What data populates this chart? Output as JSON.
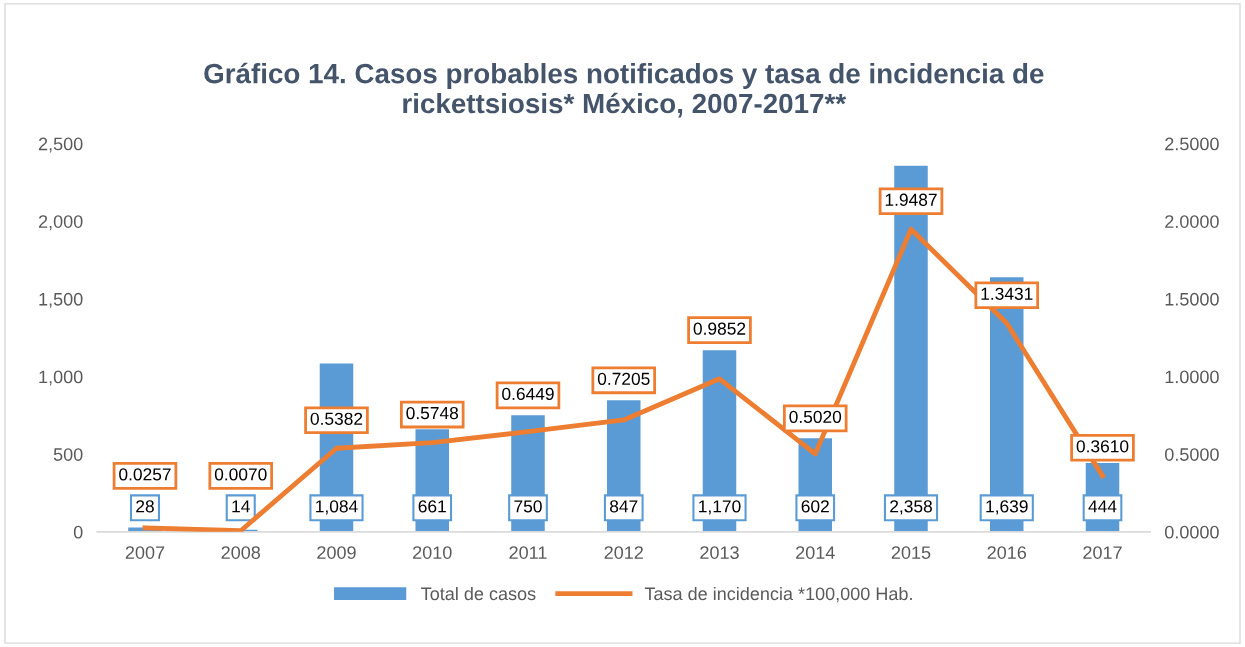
{
  "chart_data": {
    "type": "bar",
    "title": "Gráfico 14. Casos probables notificados y tasa de incidencia de\nrickettsiosis* México, 2007-2017**",
    "categories": [
      "2007",
      "2008",
      "2009",
      "2010",
      "2011",
      "2012",
      "2013",
      "2014",
      "2015",
      "2016",
      "2017"
    ],
    "series": [
      {
        "name": "Total de casos",
        "type": "bar",
        "color": "#5b9bd5",
        "values": [
          28,
          14,
          1084,
          661,
          750,
          847,
          1170,
          602,
          2358,
          1639,
          444
        ],
        "value_labels": [
          "28",
          "14",
          "1,084",
          "661",
          "750",
          "847",
          "1,170",
          "602",
          "2,358",
          "1,639",
          "444"
        ]
      },
      {
        "name": "Tasa de incidencia *100,000 Hab.",
        "type": "line",
        "axis": "y2",
        "color": "#ed7d31",
        "values": [
          0.0257,
          0.007,
          0.5382,
          0.5748,
          0.6449,
          0.7205,
          0.9852,
          0.502,
          1.9487,
          1.3431,
          0.361
        ],
        "value_labels": [
          "0.0257",
          "0.0070",
          "0.5382",
          "0.5748",
          "0.6449",
          "0.7205",
          "0.9852",
          "0.5020",
          "1.9487",
          "1.3431",
          "0.3610"
        ]
      }
    ],
    "ylim": [
      0,
      2500
    ],
    "yticks": [
      {
        "value": 0,
        "label": "0"
      },
      {
        "value": 500,
        "label": "500"
      },
      {
        "value": 1000,
        "label": "1,000"
      },
      {
        "value": 1500,
        "label": "1,500"
      },
      {
        "value": 2000,
        "label": "2,000"
      },
      {
        "value": 2500,
        "label": "2,500"
      }
    ],
    "y2lim": [
      0,
      2.5
    ],
    "y2ticks": [
      {
        "value": 0,
        "label": "0.0000"
      },
      {
        "value": 0.5,
        "label": "0.5000"
      },
      {
        "value": 1,
        "label": "1.0000"
      },
      {
        "value": 1.5,
        "label": "1.5000"
      },
      {
        "value": 2,
        "label": "2.0000"
      },
      {
        "value": 2.5,
        "label": "2.5000"
      }
    ],
    "grid": false,
    "legend": "bottom",
    "marker": "none",
    "line_style": "solid"
  }
}
